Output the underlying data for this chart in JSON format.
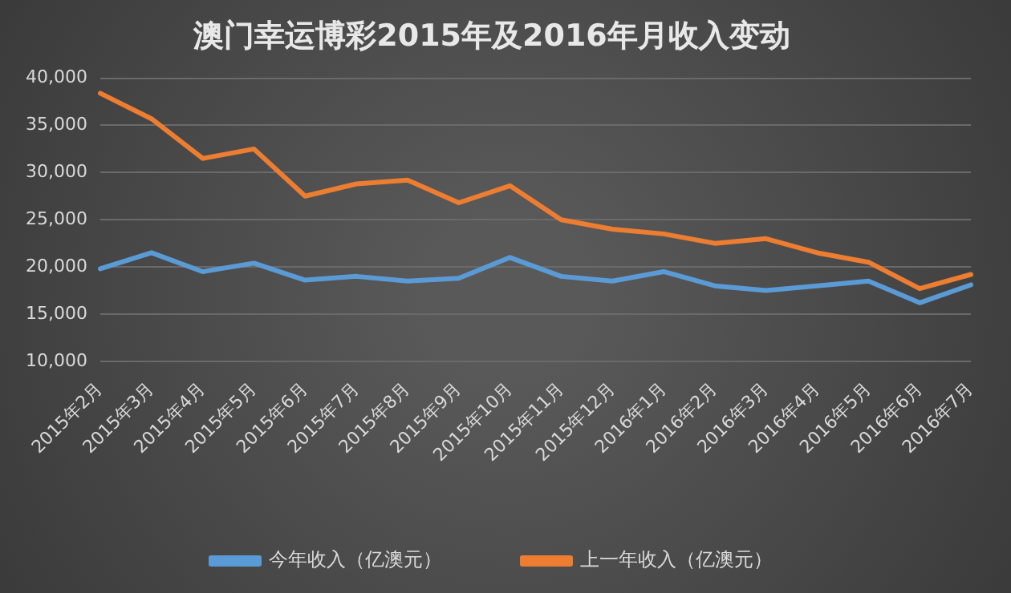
{
  "chart_data": {
    "type": "line",
    "title": "澳门幸运博彩2015年及2016年月收入变动",
    "categories": [
      "2015年2月",
      "2015年3月",
      "2015年4月",
      "2015年5月",
      "2015年6月",
      "2015年7月",
      "2015年8月",
      "2015年9月",
      "2015年10月",
      "2015年11月",
      "2015年12月",
      "2016年1月",
      "2016年2月",
      "2016年3月",
      "2016年4月",
      "2016年5月",
      "2016年6月",
      "2016年7月"
    ],
    "series": [
      {
        "name": "今年收入（亿澳元）",
        "color": "#5b9bd5",
        "values": [
          19800,
          21500,
          19500,
          20400,
          18600,
          19000,
          18500,
          18800,
          21000,
          19000,
          18500,
          19500,
          18000,
          17500,
          18000,
          18500,
          16200,
          18100
        ]
      },
      {
        "name": "上一年收入（亿澳元）",
        "color": "#ed7d31",
        "values": [
          38400,
          35700,
          31500,
          32500,
          27500,
          28800,
          29200,
          26800,
          28600,
          25000,
          24000,
          23500,
          22500,
          23000,
          21500,
          20500,
          17700,
          19200
        ]
      }
    ],
    "ylim": [
      10000,
      40000
    ],
    "yticks": [
      {
        "value": 10000,
        "label": "10,000"
      },
      {
        "value": 15000,
        "label": "15,000"
      },
      {
        "value": 20000,
        "label": "20,000"
      },
      {
        "value": 25000,
        "label": "25,000"
      },
      {
        "value": 30000,
        "label": "30,000"
      },
      {
        "value": 35000,
        "label": "35,000"
      },
      {
        "value": 40000,
        "label": "40,000"
      }
    ],
    "grid": "y",
    "legend": "bottom",
    "marker": "none",
    "line_style": "solid"
  }
}
